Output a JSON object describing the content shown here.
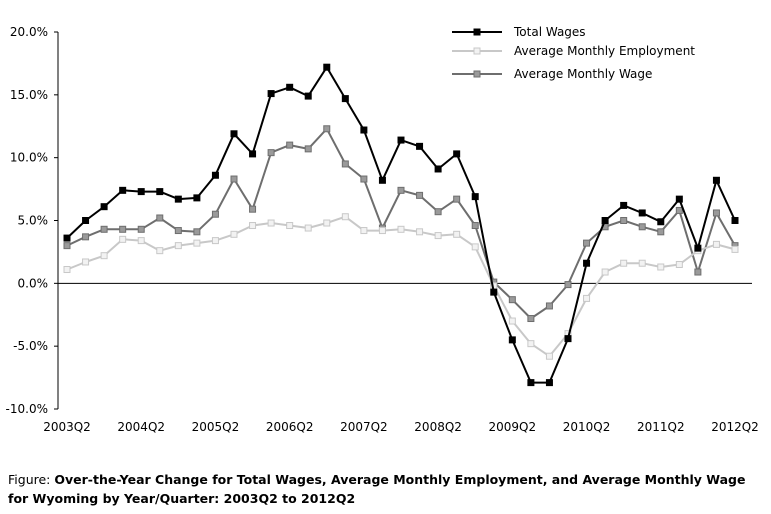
{
  "chart_data": {
    "type": "line",
    "title": "Over-the-Year Change for Total Wages, Average Monthly Employment, and Average Monthly Wage for Wyoming by Year/Quarter: 2003Q2 to 2012Q2",
    "caption_lead": "Figure:",
    "caption_body": "Over-the-Year Change for Total Wages, Average Monthly Employment, and Average Monthly Wage for Wyoming by Year/Quarter: 2003Q2 to 2012Q2",
    "xlabel": "",
    "ylabel": "",
    "ylim": [
      -10,
      20
    ],
    "y_ticks": [
      {
        "value": 20,
        "label": "20.0%"
      },
      {
        "value": 15,
        "label": "15.0%"
      },
      {
        "value": 10,
        "label": "10.0%"
      },
      {
        "value": 5,
        "label": "5.0%"
      },
      {
        "value": 0,
        "label": "0.0%"
      },
      {
        "value": -5,
        "label": "-5.0%"
      },
      {
        "value": -10,
        "label": "-10.0%"
      }
    ],
    "x_ticks": [
      {
        "index": 0,
        "label": "2003Q2"
      },
      {
        "index": 4,
        "label": "2004Q2"
      },
      {
        "index": 8,
        "label": "2005Q2"
      },
      {
        "index": 12,
        "label": "2006Q2"
      },
      {
        "index": 16,
        "label": "2007Q2"
      },
      {
        "index": 20,
        "label": "2008Q2"
      },
      {
        "index": 24,
        "label": "2009Q2"
      },
      {
        "index": 28,
        "label": "2010Q2"
      },
      {
        "index": 32,
        "label": "2011Q2"
      },
      {
        "index": 36,
        "label": "2012Q2"
      }
    ],
    "legend_position": "top-right",
    "series": [
      {
        "name": "Total Wages",
        "color": "#000000",
        "marker_fill": "#000000",
        "values": [
          3.6,
          5.0,
          6.1,
          7.4,
          7.3,
          7.3,
          6.7,
          6.8,
          8.6,
          11.9,
          10.3,
          15.1,
          15.6,
          14.9,
          17.2,
          14.7,
          12.2,
          8.2,
          11.4,
          10.9,
          9.1,
          10.3,
          6.9,
          -0.7,
          -4.5,
          -7.9,
          -7.9,
          -4.4,
          1.6,
          5.0,
          6.2,
          5.6,
          4.9,
          6.7,
          2.8,
          8.2,
          5.0
        ]
      },
      {
        "name": "Average Monthly Employment",
        "color": "#c8c8c8",
        "marker_fill": "#f2f2f2",
        "values": [
          1.1,
          1.7,
          2.2,
          3.5,
          3.4,
          2.6,
          3.0,
          3.2,
          3.4,
          3.9,
          4.6,
          4.8,
          4.6,
          4.4,
          4.8,
          5.3,
          4.2,
          4.2,
          4.3,
          4.1,
          3.8,
          3.9,
          2.9,
          -0.2,
          -3.0,
          -4.8,
          -5.8,
          -4.0,
          -1.2,
          0.9,
          1.6,
          1.6,
          1.3,
          1.5,
          2.6,
          3.1,
          2.7
        ]
      },
      {
        "name": "Average Monthly Wage",
        "color": "#6e6e6e",
        "marker_fill": "#9a9a9a",
        "values": [
          3.0,
          3.7,
          4.3,
          4.3,
          4.3,
          5.2,
          4.2,
          4.1,
          5.5,
          8.3,
          5.9,
          10.4,
          11.0,
          10.7,
          12.3,
          9.5,
          8.3,
          4.4,
          7.4,
          7.0,
          5.7,
          6.7,
          4.6,
          0.1,
          -1.3,
          -2.8,
          -1.8,
          -0.1,
          3.2,
          4.5,
          5.0,
          4.5,
          4.1,
          5.8,
          0.9,
          5.6,
          3.0
        ]
      }
    ]
  }
}
